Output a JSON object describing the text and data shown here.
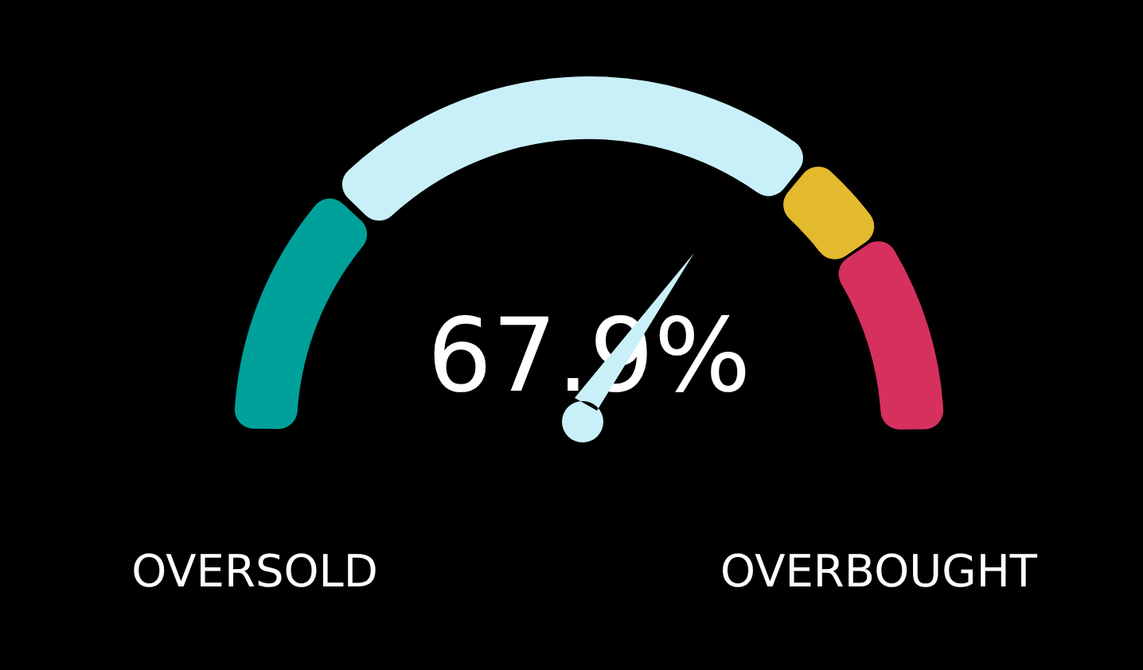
{
  "chart_data": {
    "type": "donut",
    "categories": [
      null,
      null,
      null,
      null
    ],
    "values": [
      24,
      48,
      9,
      19
    ],
    "colors": [
      "#00a19a",
      "#c9f0f8",
      "#e3b92e",
      "#d6305f"
    ],
    "annotations": [
      "67.9%",
      "OVERSOLD",
      "OVERBOUGHT"
    ]
  }
}
